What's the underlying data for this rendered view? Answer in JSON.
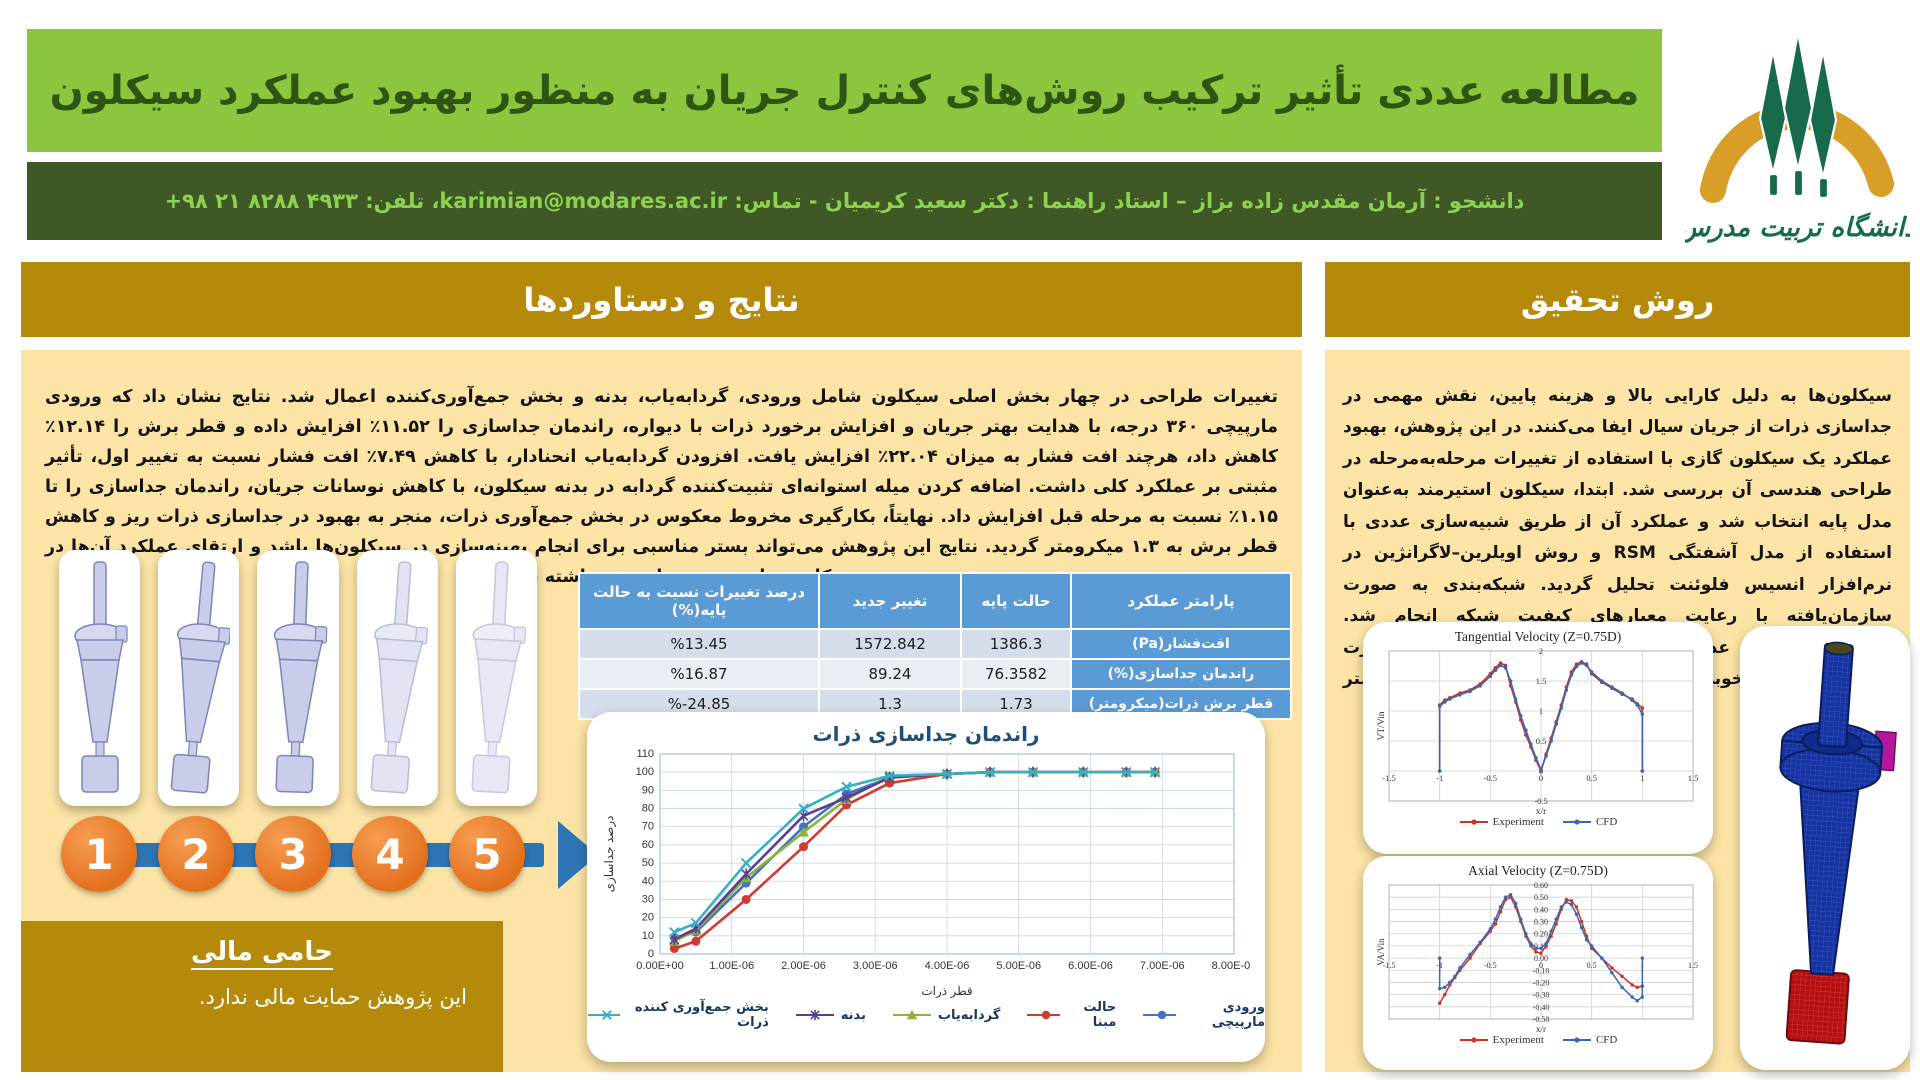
{
  "header": {
    "title": "مطالعه عددی تأثیر ترکیب روش‌های کنترل جریان به منظور بهبود عملکرد سیکلون",
    "subtitle": "دانشجو : آرمان مقدس زاده بزاز – استاد راهنما : دکتر سعید کریمیان - تماس: karimian@modares.ac.ir، تلفن: ۴۹۳۳ ۸۲۸۸ ۲۱ ۹۸+",
    "logo_text": "دانشگاه تربیت مدرس"
  },
  "results": {
    "heading": "نتایج و دستاوردها",
    "body": "تغییرات طراحی در چهار بخش اصلی سیکلون شامل ورودی، گردابه‌یاب، بدنه و بخش جمع‌آوری‌کننده اعمال شد. نتایج نشان داد که ورودی مارپیچی ۳۶۰ درجه، با هدایت بهتر جریان و افزایش برخورد ذرات با دیواره، راندمان جداسازی را ۱۱.۵۲٪ افزایش داده و قطر برش را ۱۲.۱۴٪ کاهش داد، هرچند افت فشار به میزان ۲۲.۰۴٪ افزایش یافت. افزودن گردابه‌یاب انحنادار، با کاهش ۷.۴۹٪ افت فشار نسبت به تغییر اول، تأثیر مثبتی بر عملکرد کلی داشت. اضافه کردن میله استوانه‌ای تثبیت‌کننده گردابه در بدنه سیکلون، با کاهش نوسانات جریان، راندمان جداسازی را تا ۱.۱۵٪ نسبت به مرحله قبل افزایش داد. نهایتاً، بکارگیری مخروط معکوس در بخش جمع‌آوری ذرات، منجر به بهبود در جداسازی ذرات ریز و کاهش قطر برش به ۱.۳ میکرومتر گردید. نتایج این پژوهش می‌تواند بستر مناسبی برای انجام بهینه‌سازی در سیکلون‌ها باشد و ارتقای عملکرد آن‌ها در کاربردهای صنعتی را در پی داشته باشد.",
    "steps": [
      "1",
      "2",
      "3",
      "4",
      "5"
    ],
    "sponsor": {
      "heading": "حامی مالی",
      "text": "این پژوهش حمایت مالی ندارد."
    },
    "table": {
      "headers": [
        "پارامتر عملکرد",
        "حالت پایه",
        "تغییر جدید",
        "درصد تغییرات نسبت به حالت پایه(%)"
      ],
      "rows": [
        [
          "افت‌فشار(Pa)",
          "1386.3",
          "1572.842",
          "%13.45"
        ],
        [
          "راندمان جداسازی(%)",
          "76.3582",
          "89.24",
          "%16.87"
        ],
        [
          "قطر برش ذرات(میکرومتر)",
          "1.73",
          "1.3",
          "%-24.85"
        ]
      ]
    }
  },
  "method": {
    "heading": "روش تحقیق",
    "body": "سیکلون‌ها به دلیل کارایی بالا و هزینه پایین، نقش مهمی در جداسازی ذرات از جریان سیال ایفا می‌کنند. در این پژوهش، بهبود عملکرد یک سیکلون گازی با استفاده از تغییرات مرحله‌به‌مرحله در طراحی هندسی آن بررسی شد. ابتدا، سیکلون استیرمند به‌عنوان مدل پایه انتخاب شد و عملکرد آن از طریق شبیه‌سازی عددی با استفاده از مدل آشفتگی RSM و روش اویلرین–لاگرانژین در نرم‌افزار انسیس فلوئنت تحلیل گردید. شبکه‌بندی به صورت سازمان‌یافته با رعایت معیارهای کیفیت شبکه انجام شد. اعتبارسنجی مدل عددی با داده‌های تجربی منتشرشده صورت گرفت که انطباق خوبی با نتایج شبیه‌سازی نشان داد (خطای کمتر از ۱۰٪)."
  },
  "colors": {
    "light_green": "#8CC63E",
    "dark_green": "#3E5826",
    "gold": "#B5890A",
    "cream": "#FCE4A6",
    "table_blue": "#5B9BD5",
    "arrow_blue": "#2E75B6",
    "step_orange": "#E4701E",
    "experiment_red": "#C9342A",
    "cfd_blue": "#3B67B1"
  },
  "chart_data": [
    {
      "id": "separation",
      "type": "line",
      "title": "راندمان جداسازی ذرات",
      "xlabel": "قطر ذرات",
      "ylabel": "درصد جداسازی",
      "xlim": [
        0,
        8e-06
      ],
      "ylim": [
        0,
        110
      ],
      "xtick_vals": [
        0,
        1e-06,
        2e-06,
        3e-06,
        4e-06,
        5e-06,
        6e-06,
        7e-06,
        8e-06
      ],
      "xtick_labels": [
        "0.00E+00",
        "1.00E-06",
        "2.00E-06",
        "3.00E-06",
        "4.00E-06",
        "5.00E-06",
        "6.00E-06",
        "7.00E-06",
        "8.00E-06"
      ],
      "ytick_vals": [
        0,
        10,
        20,
        30,
        40,
        50,
        60,
        70,
        80,
        90,
        100,
        110
      ],
      "ytick_labels": [
        "0",
        "10",
        "20",
        "30",
        "40",
        "50",
        "60",
        "70",
        "80",
        "90",
        "100",
        "110"
      ],
      "x": [
        2e-07,
        5e-07,
        1.2e-06,
        2e-06,
        2.6e-06,
        3.2e-06,
        4e-06,
        4.6e-06,
        5.2e-06,
        5.9e-06,
        6.5e-06,
        6.9e-06
      ],
      "legend_position": "bottom",
      "series": [
        {
          "name": "ورودی مارپیچی",
          "color": "#4472C4",
          "marker": "circle",
          "values": [
            9,
            12,
            39,
            70,
            88,
            97,
            99,
            100,
            100,
            100,
            100,
            100
          ]
        },
        {
          "name": "حالت مبنا",
          "color": "#D03B2F",
          "marker": "circle",
          "values": [
            3,
            7,
            30,
            59,
            82,
            94,
            99,
            100,
            100,
            100,
            100,
            100
          ]
        },
        {
          "name": "گردابه‌یاب",
          "color": "#8CB33E",
          "marker": "triangle",
          "values": [
            7,
            13,
            42,
            67,
            85,
            98,
            99,
            100,
            100,
            100,
            100,
            100
          ]
        },
        {
          "name": "بدنه",
          "color": "#5B3E8F",
          "marker": "star",
          "values": [
            8,
            14,
            44,
            76,
            86,
            97,
            99,
            100,
            100,
            100,
            100,
            100
          ]
        },
        {
          "name": "بخش جمع‌آوری کننده ذرات",
          "color": "#35AFC4",
          "marker": "x",
          "values": [
            12,
            17,
            50,
            80,
            92,
            98,
            99,
            100,
            100,
            100,
            100,
            100
          ]
        }
      ]
    },
    {
      "id": "tangential",
      "type": "line",
      "title": "Tangential Velocity (Z=0.75D)",
      "xlabel": "x/r",
      "ylabel": "VT/Vin",
      "xlim": [
        -1.5,
        1.5
      ],
      "ylim": [
        -0.5,
        2
      ],
      "xtick_vals": [
        -1.5,
        -1,
        -0.5,
        0,
        0.5,
        1,
        1.5
      ],
      "xtick_labels": [
        "-1.5",
        "-1",
        "-0.5",
        "0",
        "0.5",
        "1",
        "1.5"
      ],
      "ytick_vals": [
        -0.5,
        0,
        0.5,
        1,
        1.5,
        2
      ],
      "ytick_labels": [
        "-0.5",
        "0",
        "0.5",
        "1",
        "1.5",
        "2"
      ],
      "x": [
        -1,
        -1,
        -0.95,
        -0.9,
        -0.8,
        -0.7,
        -0.6,
        -0.5,
        -0.45,
        -0.4,
        -0.35,
        -0.3,
        -0.25,
        -0.2,
        -0.15,
        -0.1,
        -0.05,
        0,
        0.05,
        0.1,
        0.15,
        0.2,
        0.25,
        0.3,
        0.35,
        0.4,
        0.45,
        0.5,
        0.6,
        0.7,
        0.8,
        0.9,
        0.95,
        1,
        1
      ],
      "legend_position": "bottom",
      "series": [
        {
          "name": "Experiment",
          "color": "#C9342A",
          "marker": "circle",
          "values": [
            0,
            1.1,
            1.18,
            1.22,
            1.3,
            1.35,
            1.45,
            1.62,
            1.72,
            1.8,
            1.76,
            1.42,
            1.15,
            0.85,
            0.6,
            0.4,
            0.18,
            0,
            0.28,
            0.55,
            0.82,
            1.1,
            1.4,
            1.65,
            1.78,
            1.82,
            1.78,
            1.62,
            1.48,
            1.38,
            1.28,
            1.2,
            1.12,
            1.05,
            0
          ]
        },
        {
          "name": "CFD",
          "color": "#3B67B1",
          "marker": "circle",
          "values": [
            0,
            1.08,
            1.15,
            1.2,
            1.27,
            1.33,
            1.42,
            1.58,
            1.68,
            1.76,
            1.72,
            1.5,
            1.2,
            0.92,
            0.68,
            0.45,
            0.22,
            0.02,
            0.25,
            0.5,
            0.78,
            1.05,
            1.35,
            1.6,
            1.74,
            1.8,
            1.76,
            1.65,
            1.5,
            1.4,
            1.3,
            1.18,
            1.1,
            0.95,
            0
          ]
        }
      ]
    },
    {
      "id": "axial",
      "type": "line",
      "title": "Axial Velocity (Z=0.75D)",
      "xlabel": "x/r",
      "ylabel": "VA/Vin",
      "xlim": [
        -1.5,
        1.5
      ],
      "ylim": [
        -0.5,
        0.6
      ],
      "xtick_vals": [
        -1.5,
        -1,
        -0.5,
        0,
        0.5,
        1,
        1.5
      ],
      "xtick_labels": [
        "-1.5",
        "-1",
        "-0.5",
        "0",
        "0.5",
        "1",
        "1.5"
      ],
      "ytick_vals": [
        0.6,
        0.5,
        0.4,
        0.3,
        0.2,
        0.1,
        0,
        -0.1,
        -0.2,
        -0.3,
        -0.4,
        -0.5
      ],
      "ytick_labels": [
        "0.60",
        "0.50",
        "0.40",
        "0.30",
        "0.20",
        "0.10",
        "0.00",
        "-0.10",
        "-0.20",
        "-0.30",
        "-0.40",
        "-0.50"
      ],
      "x": [
        -1,
        -1,
        -0.95,
        -0.9,
        -0.85,
        -0.8,
        -0.7,
        -0.6,
        -0.5,
        -0.45,
        -0.4,
        -0.35,
        -0.3,
        -0.25,
        -0.2,
        -0.15,
        -0.1,
        -0.05,
        0,
        0.05,
        0.1,
        0.15,
        0.2,
        0.25,
        0.3,
        0.35,
        0.4,
        0.45,
        0.5,
        0.6,
        0.7,
        0.8,
        0.9,
        0.95,
        1,
        1
      ],
      "legend_position": "bottom",
      "series": [
        {
          "name": "Experiment",
          "color": "#C9342A",
          "marker": "circle",
          "values": [
            -0.37,
            -0.37,
            -0.3,
            -0.22,
            -0.16,
            -0.1,
            0,
            0.12,
            0.22,
            0.28,
            0.38,
            0.48,
            0.5,
            0.42,
            0.3,
            0.18,
            0.1,
            0.05,
            0.04,
            0.1,
            0.18,
            0.28,
            0.4,
            0.48,
            0.47,
            0.42,
            0.3,
            0.18,
            0.08,
            0,
            -0.08,
            -0.15,
            -0.22,
            -0.24,
            -0.23,
            -0.23
          ]
        },
        {
          "name": "CFD",
          "color": "#3B67B1",
          "marker": "circle",
          "values": [
            0,
            -0.25,
            -0.24,
            -0.2,
            -0.15,
            -0.08,
            0.03,
            0.13,
            0.24,
            0.32,
            0.42,
            0.5,
            0.52,
            0.45,
            0.32,
            0.2,
            0.12,
            0.08,
            0.08,
            0.12,
            0.22,
            0.32,
            0.42,
            0.46,
            0.44,
            0.36,
            0.25,
            0.15,
            0.1,
            0,
            -0.12,
            -0.24,
            -0.32,
            -0.35,
            -0.32,
            0
          ]
        }
      ]
    }
  ]
}
